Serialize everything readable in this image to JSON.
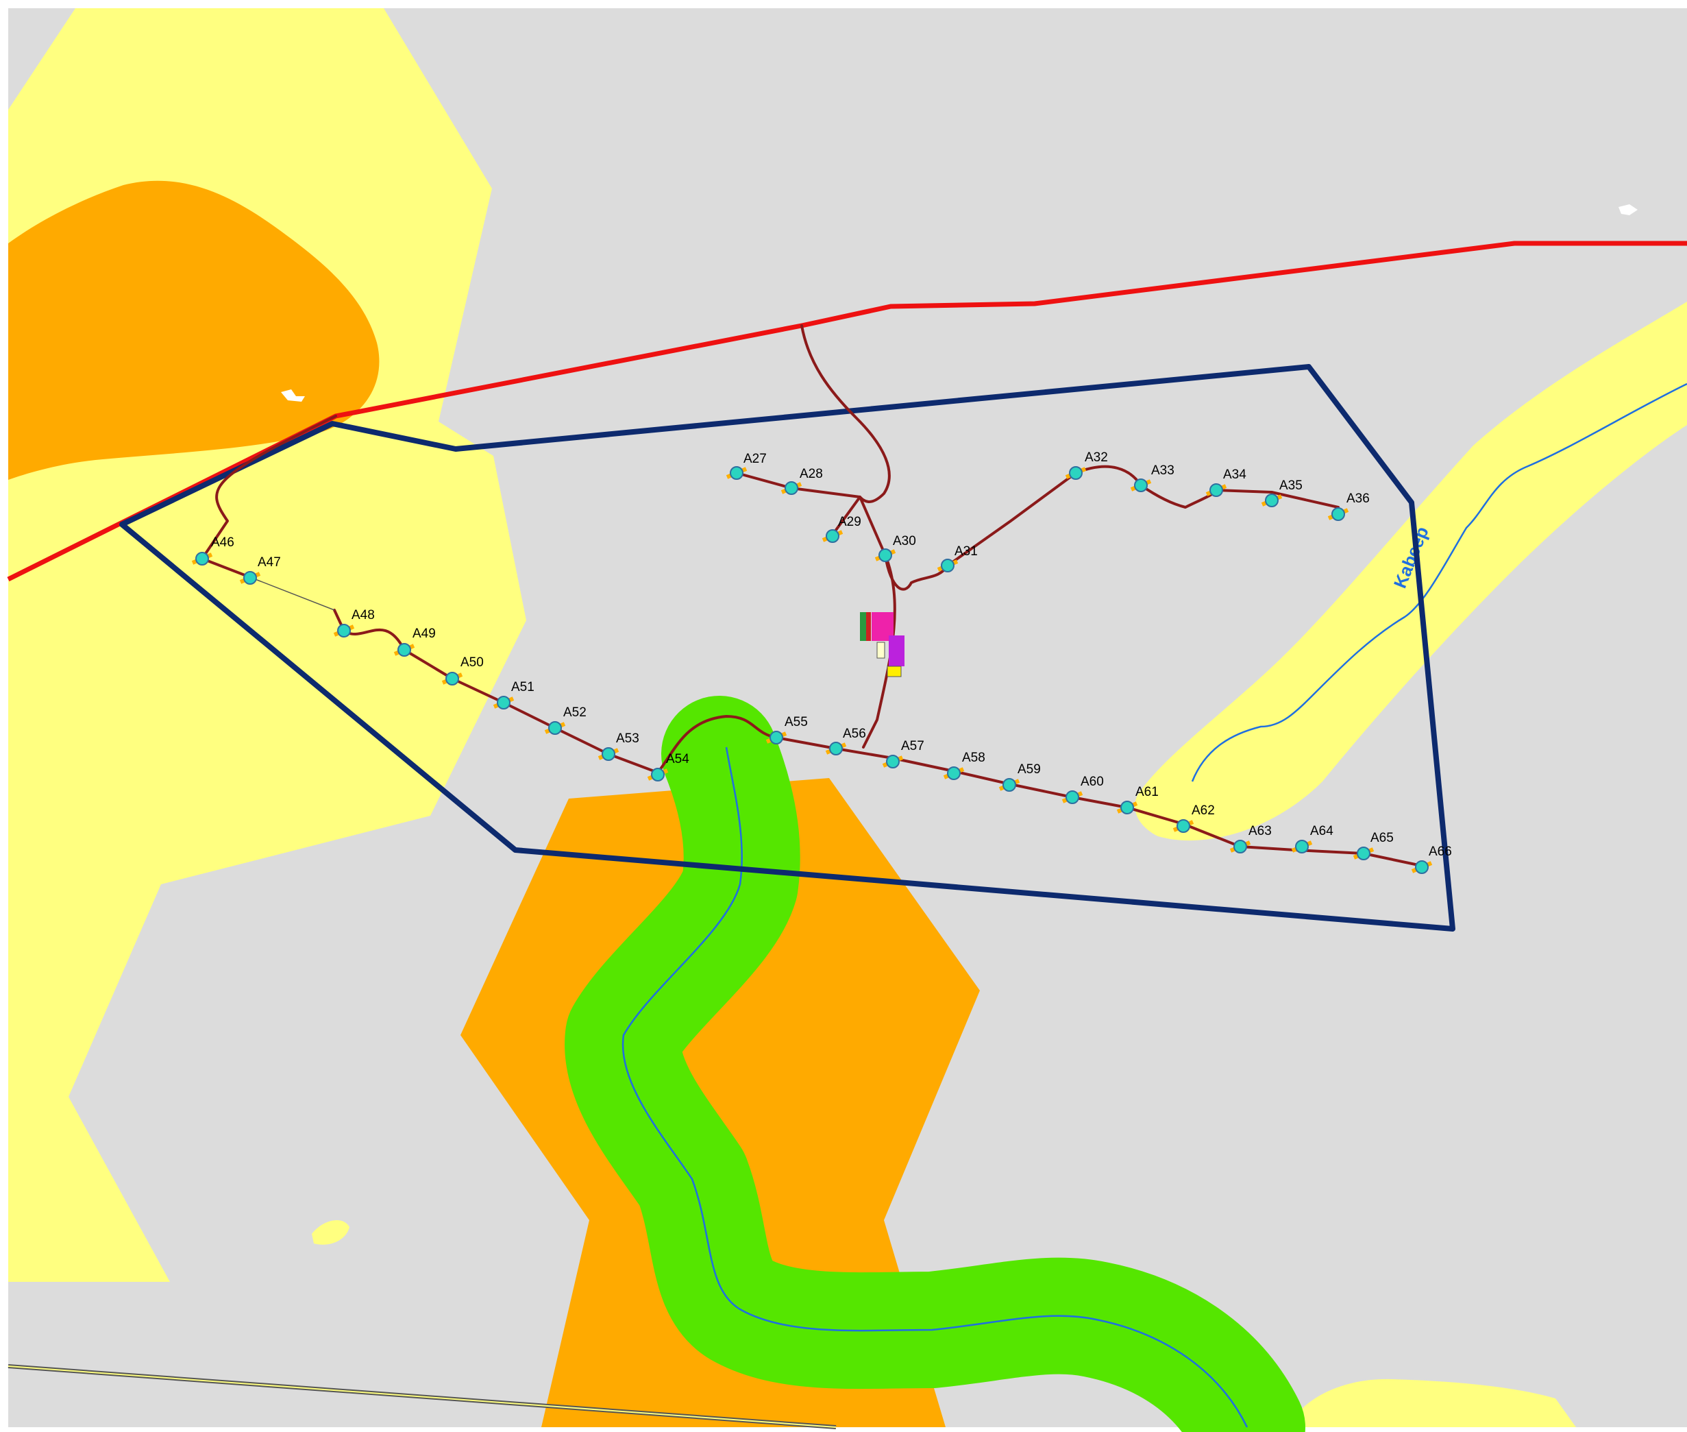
{
  "colors": {
    "background": "#dcdcdc",
    "yellow_zone": "#ffff80",
    "orange_zone": "#ffaa00",
    "green_buffer": "#55e600",
    "river": "#1f6fe0",
    "road_red": "#ee1111",
    "boundary": "#0d2a6e",
    "access_road": "#8b1a1a",
    "turbine_fill": "#2bd4c0",
    "turbine_stroke": "#2f6fa0",
    "crane_pad": "#ffb000"
  },
  "river_label": "Kabeep",
  "turbines": [
    "A27",
    "A28",
    "A29",
    "A30",
    "A31",
    "A32",
    "A33",
    "A34",
    "A35",
    "A36",
    "A46",
    "A47",
    "A48",
    "A49",
    "A50",
    "A51",
    "A52",
    "A53",
    "A54",
    "A55",
    "A56",
    "A57",
    "A58",
    "A59",
    "A60",
    "A61",
    "A62",
    "A63",
    "A64",
    "A65",
    "A66"
  ]
}
